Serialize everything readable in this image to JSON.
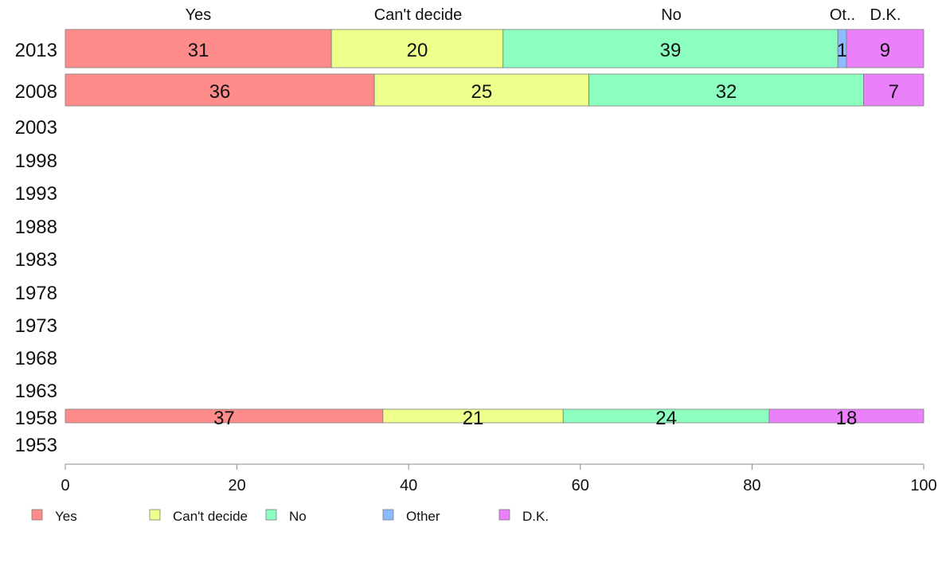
{
  "chart_data": {
    "type": "bar",
    "orientation": "horizontal",
    "stacked": true,
    "categories": [
      "Yes",
      "Can't decide",
      "No",
      "Other",
      "D.K."
    ],
    "top_labels": [
      "Yes",
      "Can't decide",
      "No",
      "Ot..",
      "D.K."
    ],
    "colors": [
      "#ff8c8a",
      "#eeff8c",
      "#8cffc0",
      "#8cbcff",
      "#eb80fb"
    ],
    "years": [
      "2013",
      "2008",
      "2003",
      "1998",
      "1993",
      "1988",
      "1983",
      "1978",
      "1973",
      "1968",
      "1963",
      "1958",
      "1953"
    ],
    "rows": [
      {
        "year": "2013",
        "values": [
          31,
          20,
          39,
          1,
          9
        ],
        "labels": [
          "31",
          "20",
          "39",
          "1",
          "9"
        ]
      },
      {
        "year": "2008",
        "values": [
          36,
          25,
          32,
          0,
          7
        ],
        "labels": [
          "36",
          "25",
          "32",
          "",
          "7"
        ]
      },
      {
        "year": "1958",
        "values": [
          37,
          21,
          24,
          0,
          18
        ],
        "labels": [
          "37",
          "21",
          "24",
          "",
          "18"
        ]
      }
    ],
    "xlim": [
      0,
      100
    ],
    "x_ticks": [
      0,
      20,
      40,
      60,
      80,
      100
    ],
    "x_tick_labels": [
      "0",
      "20",
      "40",
      "60",
      "80",
      "100"
    ],
    "grid": false,
    "legend": {
      "placement": "bottom-left",
      "entries": [
        "Yes",
        "Can't decide",
        "No",
        "Other",
        "D.K."
      ]
    }
  }
}
